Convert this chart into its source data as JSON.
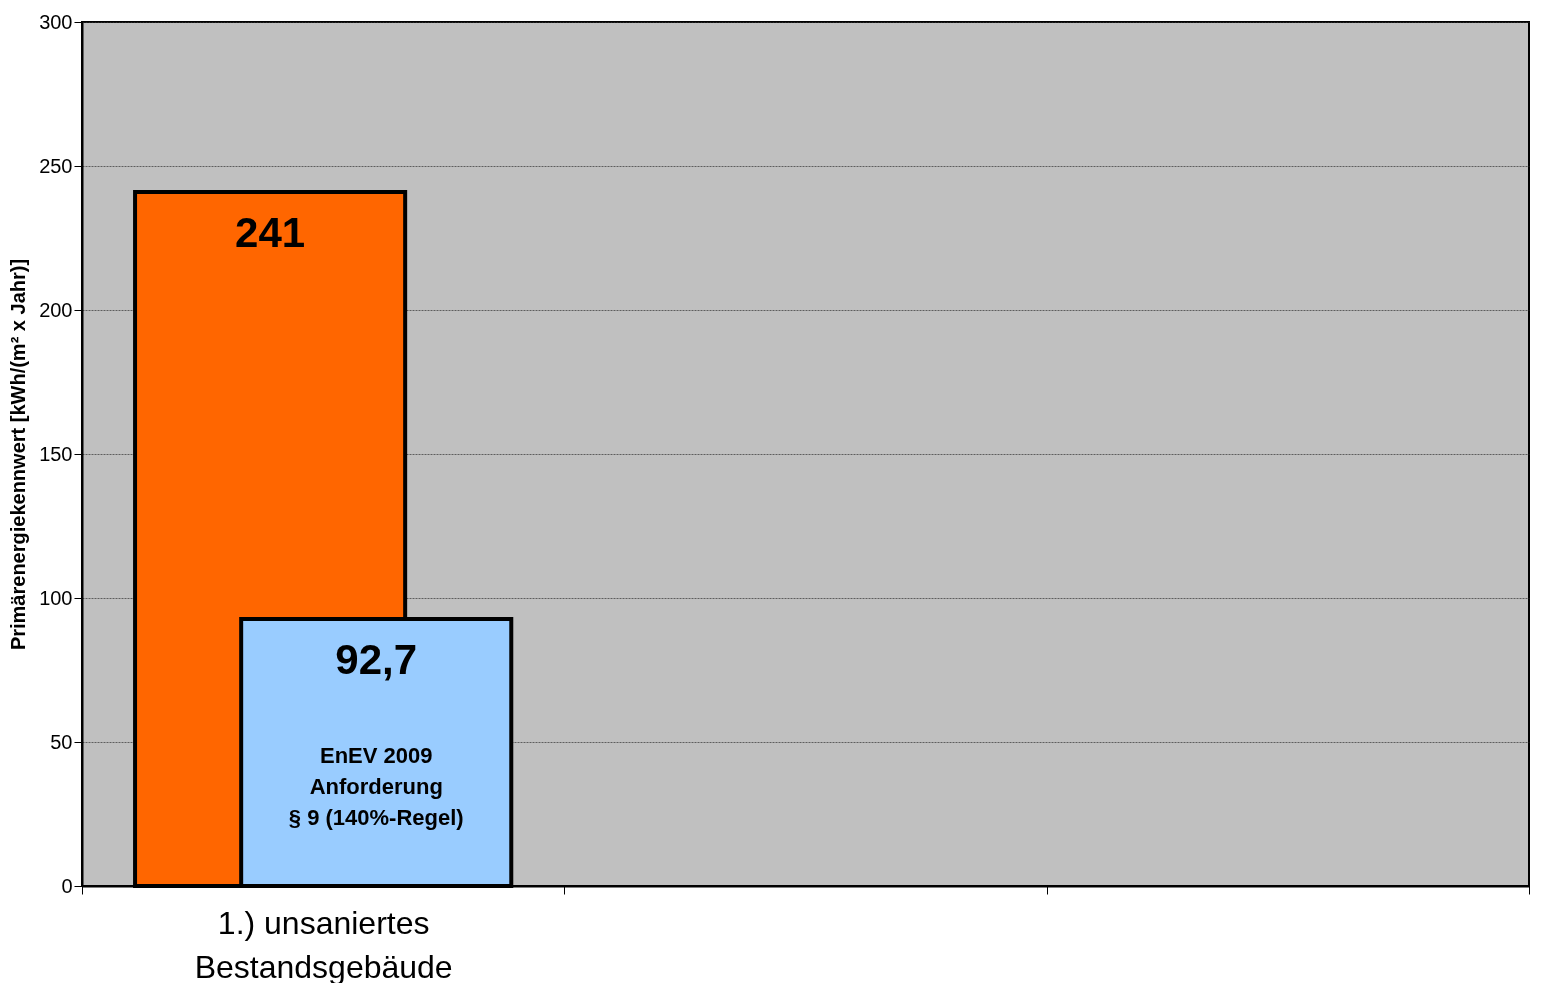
{
  "chart_data": {
    "type": "bar",
    "ylabel": "Primärenergiekennwert [kWh/(m² x Jahr)]",
    "categories": [
      "1.) unsaniertes Bestandsgebäude",
      null,
      null
    ],
    "series": [
      {
        "color": "#ff6600",
        "values": [
          241,
          null,
          null
        ],
        "value_labels": [
          "241",
          null,
          null
        ]
      },
      {
        "color": "#99ccff",
        "values": [
          92.7,
          null,
          null
        ],
        "value_labels": [
          "92,7",
          null,
          null
        ]
      }
    ],
    "ylim": [
      0,
      300
    ],
    "yticks": [
      0,
      50,
      100,
      150,
      200,
      250,
      300
    ],
    "grid": "y",
    "annotations": [
      "EnEV 2009\nAnforderung\n§ 9 (140%-Regel)"
    ]
  }
}
